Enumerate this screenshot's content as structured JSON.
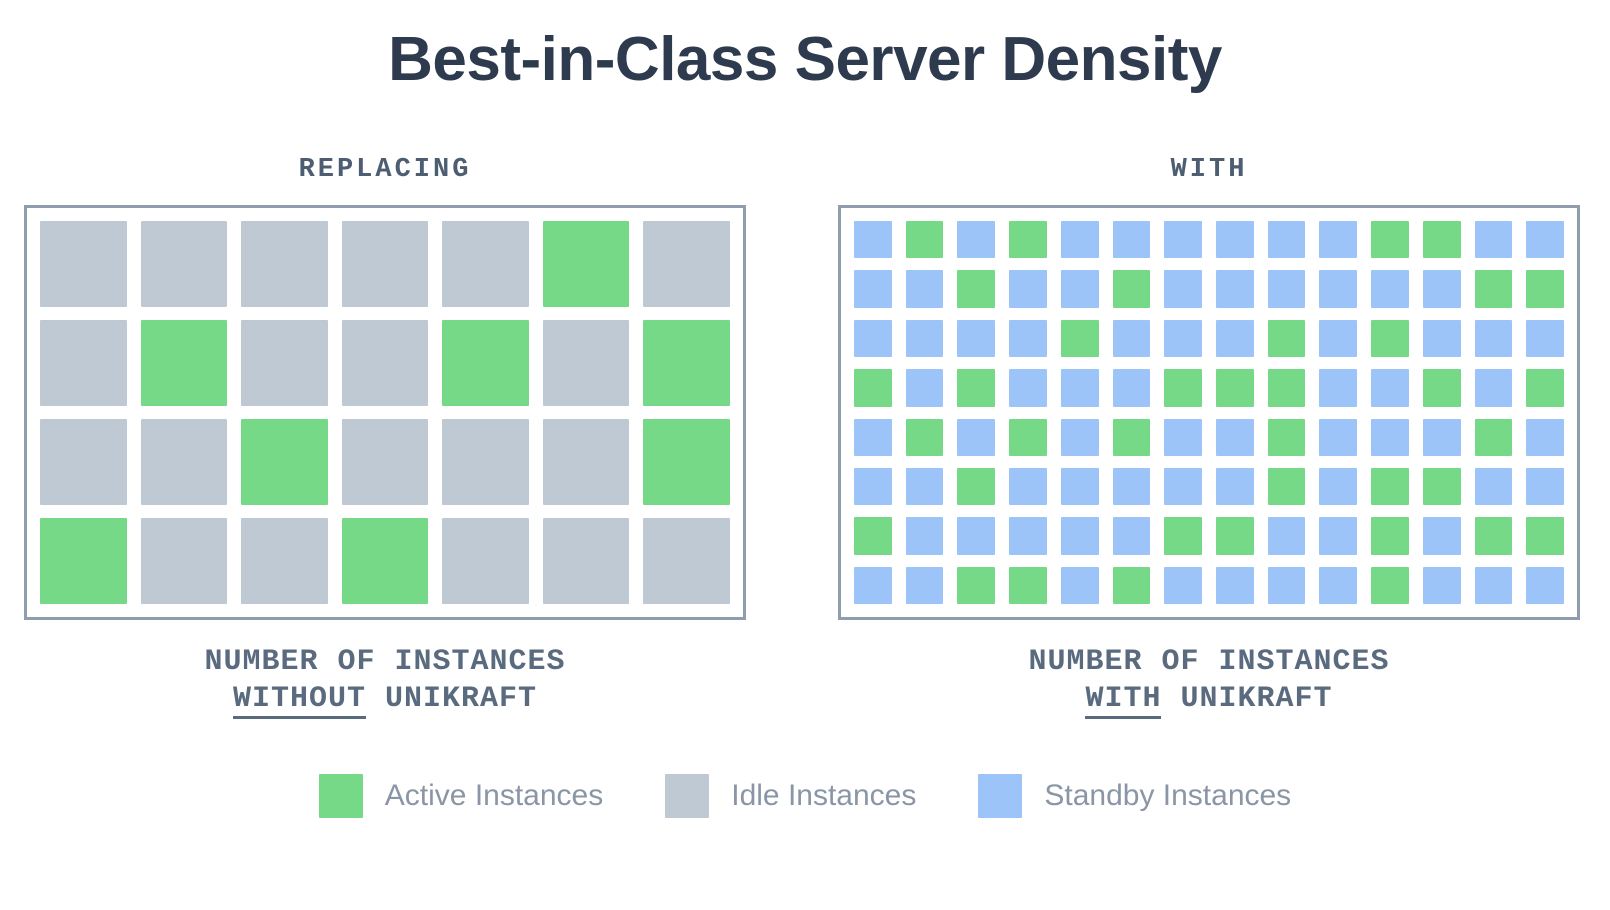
{
  "title": "Best-in-Class Server Density",
  "colors": {
    "active_green": "#76d988",
    "idle_gray": "#bfc9d4",
    "standby_blue": "#9cc4f8",
    "box_border": "#8f9dac",
    "title_text": "#2e3a4d",
    "label_text": "#4d5d72",
    "caption_text": "#5b6b7f",
    "legend_text": "#8a96a6"
  },
  "panels": {
    "left": {
      "label": "REPLACING",
      "caption_line1": "NUMBER OF INSTANCES",
      "caption_emphasis": "WITHOUT",
      "caption_tail": " UNIKRAFT"
    },
    "right": {
      "label": "WITH",
      "caption_line1": "NUMBER OF INSTANCES",
      "caption_emphasis": "WITH",
      "caption_tail": " UNIKRAFT"
    }
  },
  "legend": [
    {
      "label": "Active Instances",
      "color": "#76d988",
      "key": "active"
    },
    {
      "label": "Idle Instances",
      "color": "#bfc9d4",
      "key": "idle"
    },
    {
      "label": "Standby Instances",
      "color": "#9cc4f8",
      "key": "standby"
    }
  ],
  "chart_data": {
    "type": "heatmap",
    "subtype": "waffle-unit-chart",
    "title": "Best-in-Class Server Density",
    "cell_states": {
      "A": "Active Instances",
      "I": "Idle Instances",
      "S": "Standby Instances"
    },
    "legend_position": "bottom",
    "panels": [
      {
        "label": "REPLACING",
        "caption": "NUMBER OF INSTANCES WITHOUT UNIKRAFT",
        "rows": 4,
        "columns": 7,
        "grid": [
          "IIIIIAI",
          "IAIIAIA",
          "IIAIIIA",
          "AIIAIII"
        ],
        "counts": {
          "active": 8,
          "idle": 20,
          "standby": 0
        }
      },
      {
        "label": "WITH",
        "caption": "NUMBER OF INSTANCES WITH UNIKRAFT",
        "rows": 8,
        "columns": 14,
        "grid": [
          "SASASSSSSSAASS",
          "SSASSASSSSSSAA",
          "SSSSASSSASASSS",
          "ASASSSAAASSASA",
          "SASASASSASSSAS",
          "SSASSSSSASAASS",
          "ASSSSSAASSASAA",
          "SSAASASSSSASSS"
        ],
        "counts": {
          "active": 37,
          "idle": 0,
          "standby": 75
        }
      }
    ]
  }
}
